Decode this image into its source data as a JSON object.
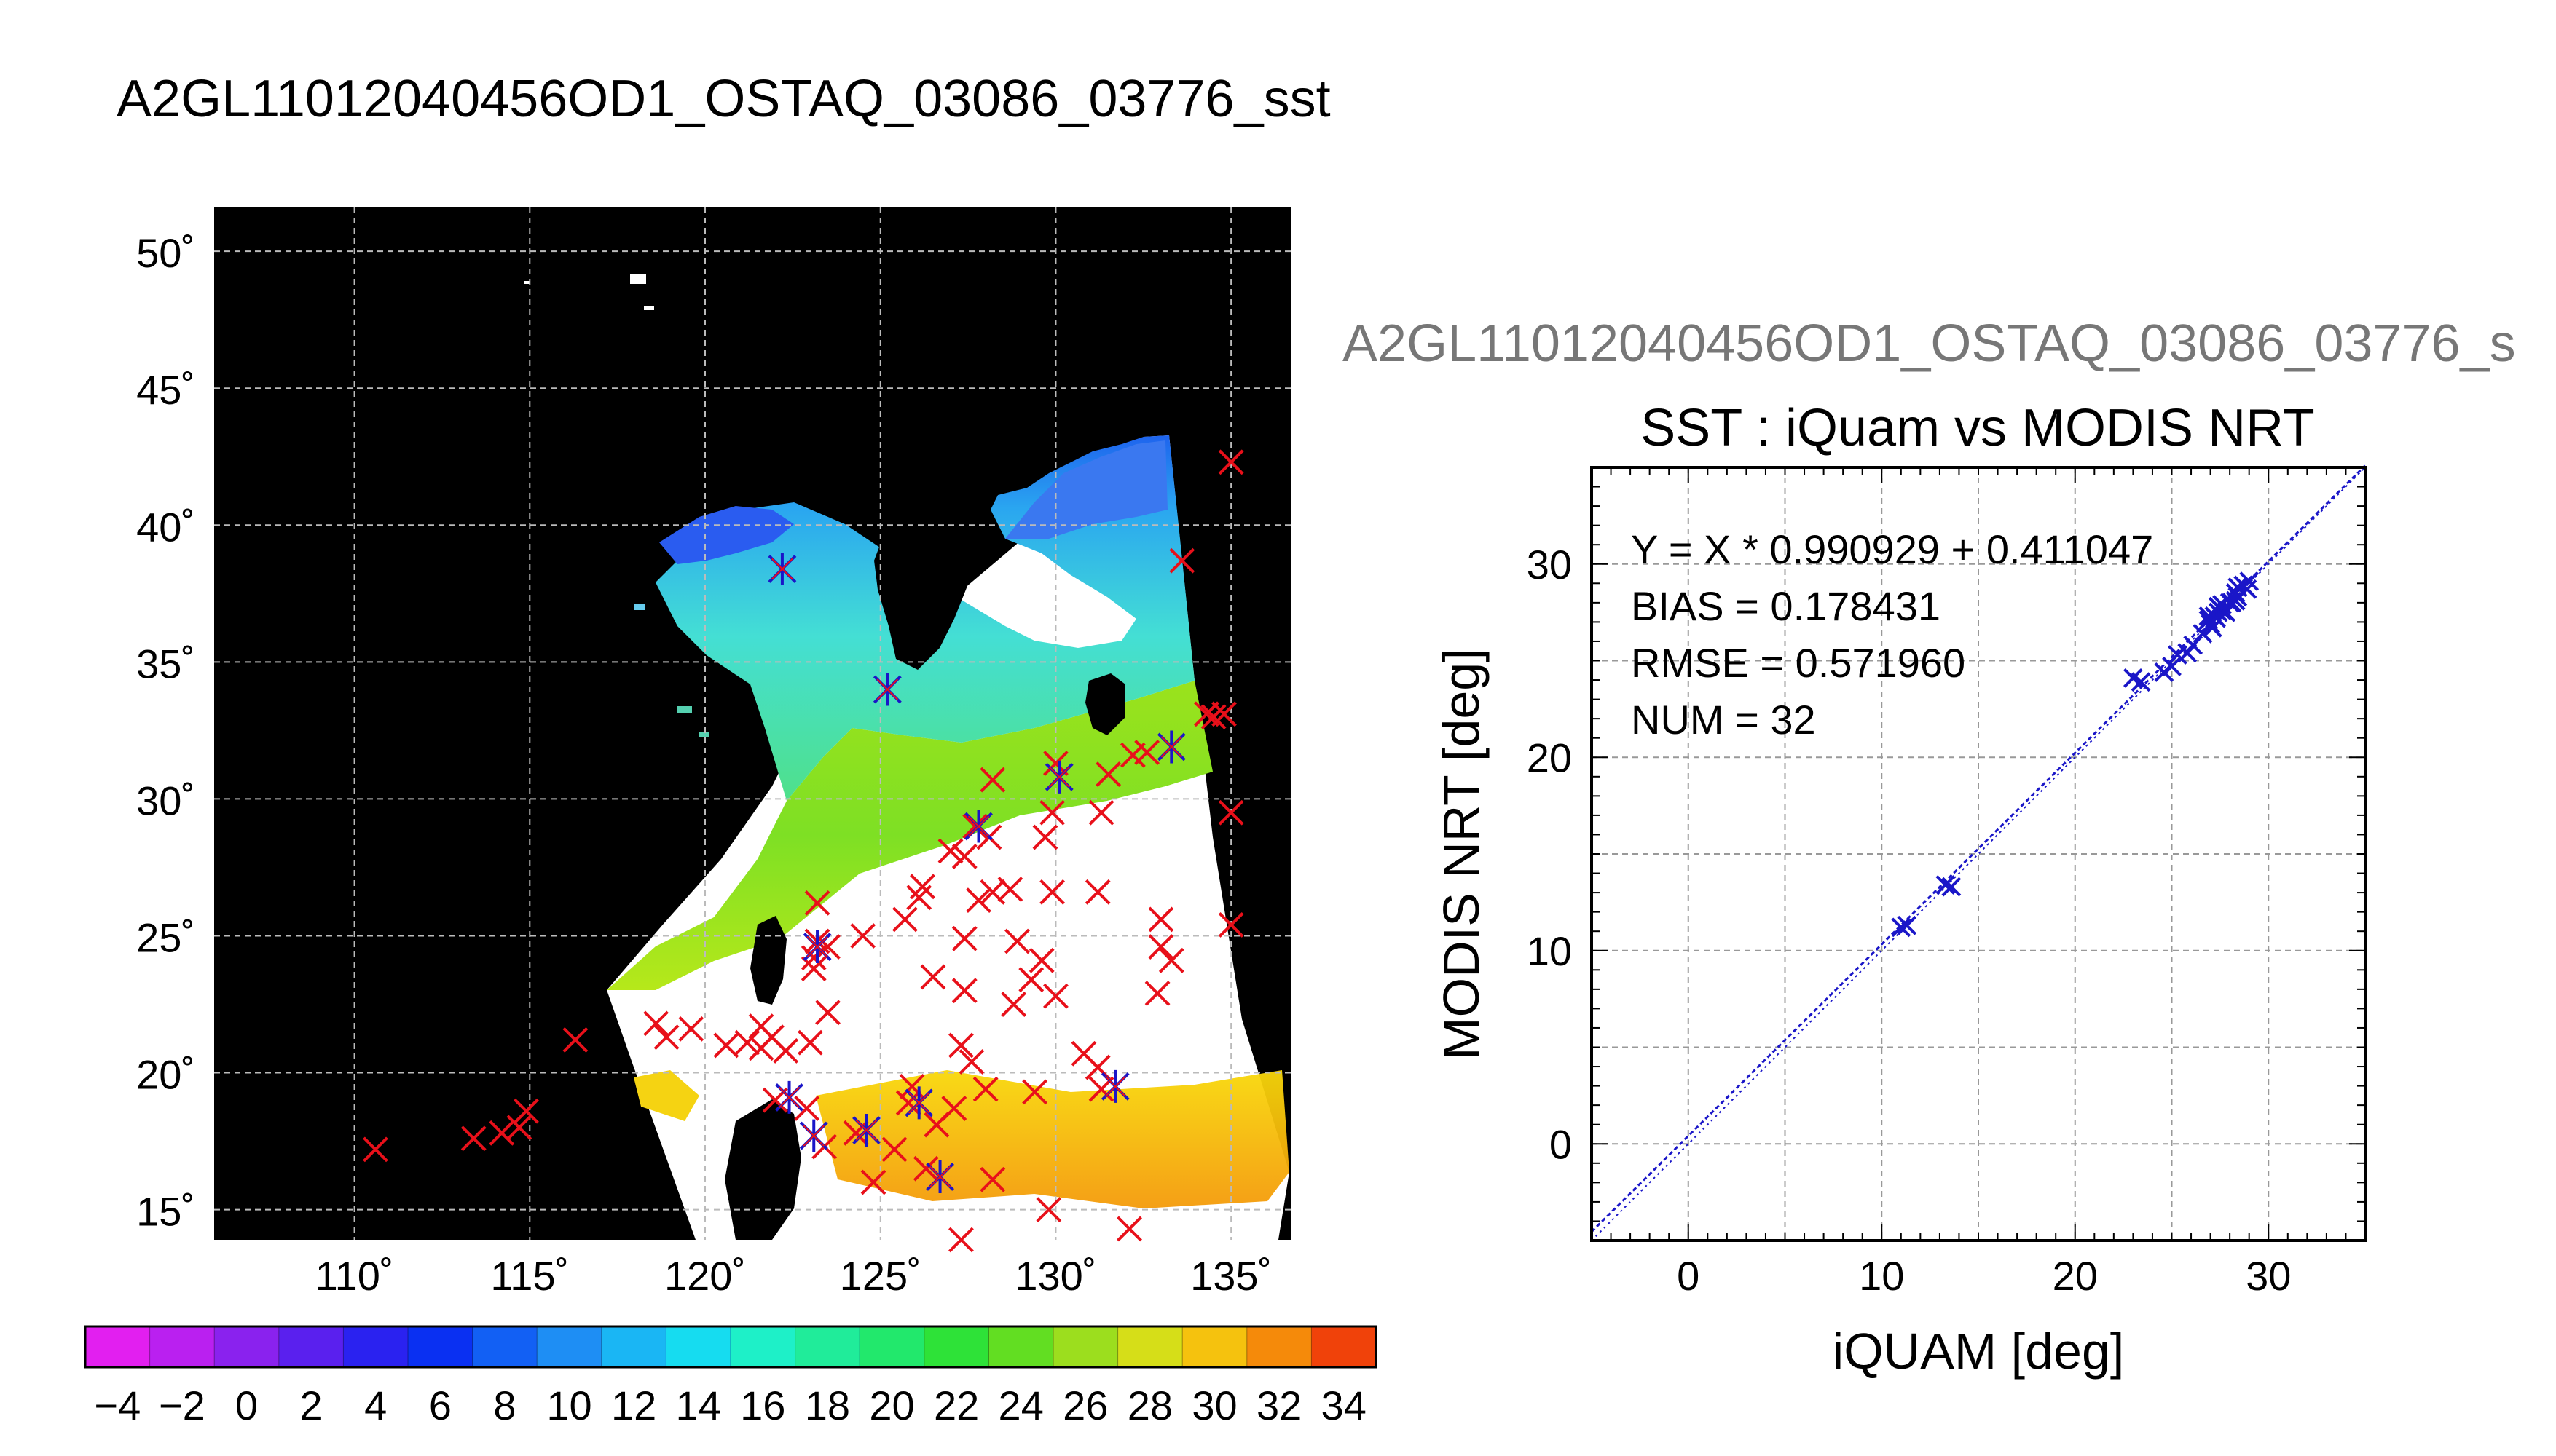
{
  "main_title": "A2GL11012040456OD1_OSTAQ_03086_03776_sst",
  "scatter_heading": "A2GL11012040456OD1_OSTAQ_03086_03776_s",
  "colors": {
    "background": "#ffffff",
    "map_background": "#000000",
    "red_marker": "#e8101a",
    "blue_marker": "#1a16c8",
    "heading_gray": "#777777",
    "grid": "#999999"
  },
  "chart_data": [
    {
      "type": "map",
      "lon_ticks": [
        "110˚",
        "115˚",
        "120˚",
        "125˚",
        "130˚",
        "135˚"
      ],
      "lat_ticks": [
        "50˚",
        "45˚",
        "40˚",
        "35˚",
        "30˚",
        "25˚",
        "20˚",
        "15˚"
      ],
      "lon_range": [
        106,
        136.7
      ],
      "lat_range": [
        13.9,
        51.6
      ],
      "grid": true,
      "red_markers": [
        [
          110.6,
          17.2
        ],
        [
          113.4,
          17.6
        ],
        [
          114.2,
          17.8
        ],
        [
          114.7,
          18.0
        ],
        [
          114.9,
          18.6
        ],
        [
          116.3,
          21.2
        ],
        [
          118.6,
          21.8
        ],
        [
          118.9,
          21.3
        ],
        [
          119.6,
          21.6
        ],
        [
          120.6,
          21.0
        ],
        [
          121.2,
          21.1
        ],
        [
          121.6,
          21.7
        ],
        [
          121.9,
          21.3
        ],
        [
          121.6,
          20.9
        ],
        [
          122.3,
          20.8
        ],
        [
          123.0,
          21.1
        ],
        [
          123.5,
          22.2
        ],
        [
          122.0,
          19.0
        ],
        [
          122.9,
          18.7
        ],
        [
          123.4,
          17.3
        ],
        [
          124.3,
          17.8
        ],
        [
          124.8,
          16.0
        ],
        [
          125.4,
          17.2
        ],
        [
          125.9,
          19.5
        ],
        [
          125.8,
          18.9
        ],
        [
          126.3,
          16.5
        ],
        [
          126.6,
          18.1
        ],
        [
          127.1,
          18.7
        ],
        [
          127.6,
          20.4
        ],
        [
          128.0,
          19.4
        ],
        [
          128.2,
          16.1
        ],
        [
          127.3,
          13.9
        ],
        [
          129.4,
          19.3
        ],
        [
          129.8,
          15.0
        ],
        [
          131.3,
          19.4
        ],
        [
          132.1,
          14.3
        ],
        [
          127.3,
          21.0
        ],
        [
          127.4,
          23.0
        ],
        [
          128.8,
          22.5
        ],
        [
          129.3,
          23.4
        ],
        [
          130.0,
          22.8
        ],
        [
          130.8,
          20.7
        ],
        [
          131.2,
          20.2
        ],
        [
          132.9,
          22.9
        ],
        [
          133.3,
          24.1
        ],
        [
          133.0,
          24.6
        ],
        [
          133.0,
          25.6
        ],
        [
          135.0,
          25.4
        ],
        [
          123.2,
          24.8
        ],
        [
          123.1,
          24.2
        ],
        [
          123.5,
          24.6
        ],
        [
          124.5,
          25.0
        ],
        [
          123.1,
          23.8
        ],
        [
          123.2,
          26.2
        ],
        [
          125.7,
          25.6
        ],
        [
          126.2,
          26.8
        ],
        [
          126.1,
          26.4
        ],
        [
          127.4,
          24.9
        ],
        [
          127.8,
          26.3
        ],
        [
          128.2,
          26.6
        ],
        [
          128.7,
          26.7
        ],
        [
          128.9,
          24.8
        ],
        [
          129.6,
          24.1
        ],
        [
          129.9,
          26.6
        ],
        [
          131.2,
          26.6
        ],
        [
          127.4,
          27.9
        ],
        [
          127.0,
          28.1
        ],
        [
          127.7,
          29.0
        ],
        [
          128.1,
          28.6
        ],
        [
          128.2,
          30.7
        ],
        [
          129.7,
          28.6
        ],
        [
          129.9,
          29.5
        ],
        [
          130.0,
          31.3
        ],
        [
          131.3,
          29.5
        ],
        [
          131.5,
          30.9
        ],
        [
          132.2,
          31.6
        ],
        [
          132.6,
          31.7
        ],
        [
          134.3,
          33.1
        ],
        [
          134.5,
          33.0
        ],
        [
          134.8,
          33.1
        ],
        [
          135.0,
          29.5
        ],
        [
          133.6,
          38.7
        ],
        [
          135.0,
          42.3
        ],
        [
          126.5,
          23.5
        ]
      ],
      "blue_markers": [
        [
          122.2,
          38.4
        ],
        [
          125.2,
          34.0
        ],
        [
          133.3,
          31.9
        ],
        [
          127.8,
          29.0
        ],
        [
          123.2,
          24.6
        ],
        [
          122.4,
          19.1
        ],
        [
          123.1,
          17.7
        ],
        [
          124.6,
          17.9
        ],
        [
          126.7,
          16.2
        ],
        [
          126.1,
          18.9
        ],
        [
          131.7,
          19.5
        ],
        [
          130.1,
          30.8
        ]
      ]
    },
    {
      "type": "scatter",
      "title": "SST : iQuam vs MODIS NRT",
      "xlabel": "iQUAM [deg]",
      "ylabel": "MODIS NRT [deg]",
      "xlim": [
        -5,
        35
      ],
      "ylim": [
        -5,
        35
      ],
      "major_ticks": [
        0,
        10,
        20,
        30
      ],
      "grid": true,
      "stats": {
        "equation": "Y = X * 0.990929 + 0.411047",
        "bias": "BIAS = 0.178431",
        "rmse": "RMSE = 0.571960",
        "num": "NUM = 32"
      },
      "fit": {
        "slope": 0.990929,
        "intercept": 0.411047
      },
      "points": [
        [
          11.0,
          11.2
        ],
        [
          11.3,
          11.3
        ],
        [
          13.3,
          13.4
        ],
        [
          13.6,
          13.3
        ],
        [
          23.0,
          24.1
        ],
        [
          23.4,
          23.9
        ],
        [
          24.6,
          24.4
        ],
        [
          25.0,
          24.7
        ],
        [
          25.3,
          25.3
        ],
        [
          25.8,
          25.4
        ],
        [
          26.1,
          25.8
        ],
        [
          26.6,
          26.4
        ],
        [
          26.9,
          27.1
        ],
        [
          27.0,
          26.9
        ],
        [
          27.1,
          26.7
        ],
        [
          27.2,
          27.3
        ],
        [
          27.4,
          27.5
        ],
        [
          27.4,
          27.8
        ],
        [
          27.6,
          27.6
        ],
        [
          27.6,
          27.9
        ],
        [
          27.8,
          27.5
        ],
        [
          28.0,
          28.0
        ],
        [
          28.1,
          28.0
        ],
        [
          28.3,
          28.5
        ],
        [
          28.4,
          28.3
        ],
        [
          28.7,
          28.9
        ],
        [
          28.9,
          28.7
        ],
        [
          29.0,
          29.1
        ],
        [
          28.4,
          28.8
        ],
        [
          27.3,
          27.2
        ],
        [
          28.3,
          28.1
        ],
        [
          26.9,
          27.3
        ]
      ]
    },
    {
      "type": "colorbar",
      "tick_labels": [
        "−4",
        "−2",
        "0",
        "2",
        "4",
        "6",
        "8",
        "10",
        "12",
        "14",
        "16",
        "18",
        "20",
        "22",
        "24",
        "26",
        "28",
        "30",
        "32",
        "34"
      ],
      "range": [
        -5,
        35
      ],
      "bins": 20
    }
  ]
}
